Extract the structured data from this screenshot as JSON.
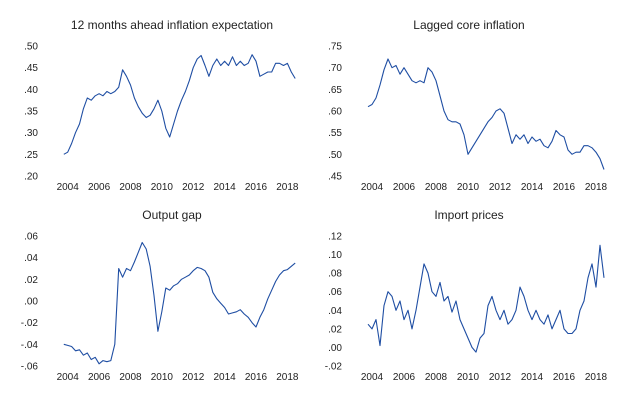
{
  "line_color": "#1f4ea3",
  "chart_data": [
    {
      "type": "line",
      "title": "12 months ahead inflation expectation",
      "xlabel": "",
      "ylabel": "",
      "x_ticks": [
        "2004",
        "2006",
        "2008",
        "2010",
        "2012",
        "2014",
        "2016",
        "2018"
      ],
      "y_ticks": [
        ".20",
        ".25",
        ".30",
        ".35",
        ".40",
        ".45",
        ".50"
      ],
      "xlim": [
        2003,
        2019.25
      ],
      "ylim": [
        0.2,
        0.5
      ],
      "grid": false,
      "legend": "none",
      "series": [
        {
          "x": [
            2003.75,
            2004.0,
            2004.25,
            2004.5,
            2004.75,
            2005.0,
            2005.25,
            2005.5,
            2005.75,
            2006.0,
            2006.25,
            2006.5,
            2006.75,
            2007.0,
            2007.25,
            2007.5,
            2007.75,
            2008.0,
            2008.25,
            2008.5,
            2008.75,
            2009.0,
            2009.25,
            2009.5,
            2009.75,
            2010.0,
            2010.25,
            2010.5,
            2010.75,
            2011.0,
            2011.25,
            2011.5,
            2011.75,
            2012.0,
            2012.25,
            2012.5,
            2012.75,
            2013.0,
            2013.25,
            2013.5,
            2013.75,
            2014.0,
            2014.25,
            2014.5,
            2014.75,
            2015.0,
            2015.25,
            2015.5,
            2015.75,
            2016.0,
            2016.25,
            2016.5,
            2016.75,
            2017.0,
            2017.25,
            2017.5,
            2017.75,
            2018.0,
            2018.25,
            2018.5
          ],
          "y": [
            0.25,
            0.255,
            0.275,
            0.3,
            0.32,
            0.355,
            0.38,
            0.375,
            0.385,
            0.39,
            0.385,
            0.395,
            0.39,
            0.395,
            0.405,
            0.445,
            0.43,
            0.41,
            0.38,
            0.36,
            0.345,
            0.335,
            0.34,
            0.355,
            0.375,
            0.35,
            0.31,
            0.29,
            0.32,
            0.35,
            0.375,
            0.395,
            0.42,
            0.45,
            0.47,
            0.478,
            0.455,
            0.43,
            0.455,
            0.47,
            0.455,
            0.465,
            0.455,
            0.475,
            0.455,
            0.465,
            0.455,
            0.46,
            0.48,
            0.465,
            0.43,
            0.435,
            0.44,
            0.44,
            0.46,
            0.46,
            0.455,
            0.46,
            0.44,
            0.425
          ]
        }
      ]
    },
    {
      "type": "line",
      "title": "Lagged core inflation",
      "xlabel": "",
      "ylabel": "",
      "x_ticks": [
        "2004",
        "2006",
        "2008",
        "2010",
        "2012",
        "2014",
        "2016",
        "2018"
      ],
      "y_ticks": [
        ".45",
        ".50",
        ".55",
        ".60",
        ".65",
        ".70",
        ".75"
      ],
      "xlim": [
        2003,
        2019.25
      ],
      "ylim": [
        0.45,
        0.75
      ],
      "grid": false,
      "legend": "none",
      "series": [
        {
          "x": [
            2003.75,
            2004.0,
            2004.25,
            2004.5,
            2004.75,
            2005.0,
            2005.25,
            2005.5,
            2005.75,
            2006.0,
            2006.25,
            2006.5,
            2006.75,
            2007.0,
            2007.25,
            2007.5,
            2007.75,
            2008.0,
            2008.25,
            2008.5,
            2008.75,
            2009.0,
            2009.25,
            2009.5,
            2009.75,
            2010.0,
            2010.25,
            2010.5,
            2010.75,
            2011.0,
            2011.25,
            2011.5,
            2011.75,
            2012.0,
            2012.25,
            2012.5,
            2012.75,
            2013.0,
            2013.25,
            2013.5,
            2013.75,
            2014.0,
            2014.25,
            2014.5,
            2014.75,
            2015.0,
            2015.25,
            2015.5,
            2015.75,
            2016.0,
            2016.25,
            2016.5,
            2016.75,
            2017.0,
            2017.25,
            2017.5,
            2017.75,
            2018.0,
            2018.25,
            2018.5
          ],
          "y": [
            0.61,
            0.615,
            0.63,
            0.66,
            0.695,
            0.72,
            0.7,
            0.705,
            0.685,
            0.7,
            0.685,
            0.67,
            0.665,
            0.67,
            0.665,
            0.7,
            0.69,
            0.67,
            0.635,
            0.6,
            0.58,
            0.575,
            0.575,
            0.57,
            0.545,
            0.5,
            0.515,
            0.53,
            0.545,
            0.56,
            0.575,
            0.585,
            0.6,
            0.605,
            0.595,
            0.56,
            0.525,
            0.545,
            0.535,
            0.545,
            0.525,
            0.54,
            0.53,
            0.535,
            0.52,
            0.515,
            0.53,
            0.555,
            0.545,
            0.54,
            0.51,
            0.5,
            0.505,
            0.505,
            0.52,
            0.52,
            0.515,
            0.505,
            0.49,
            0.465
          ]
        }
      ]
    },
    {
      "type": "line",
      "title": "Output gap",
      "xlabel": "",
      "ylabel": "",
      "x_ticks": [
        "2004",
        "2006",
        "2008",
        "2010",
        "2012",
        "2014",
        "2016",
        "2018"
      ],
      "y_ticks": [
        "-.06",
        "-.04",
        "-.02",
        ".00",
        ".02",
        ".04",
        ".06"
      ],
      "xlim": [
        2003,
        2019.25
      ],
      "ylim": [
        -0.06,
        0.06
      ],
      "grid": false,
      "legend": "none",
      "series": [
        {
          "x": [
            2003.75,
            2004.0,
            2004.25,
            2004.5,
            2004.75,
            2005.0,
            2005.25,
            2005.5,
            2005.75,
            2006.0,
            2006.25,
            2006.5,
            2006.75,
            2007.0,
            2007.25,
            2007.5,
            2007.75,
            2008.0,
            2008.25,
            2008.5,
            2008.75,
            2009.0,
            2009.25,
            2009.5,
            2009.75,
            2010.0,
            2010.25,
            2010.5,
            2010.75,
            2011.0,
            2011.25,
            2011.5,
            2011.75,
            2012.0,
            2012.25,
            2012.5,
            2012.75,
            2013.0,
            2013.25,
            2013.5,
            2013.75,
            2014.0,
            2014.25,
            2014.5,
            2014.75,
            2015.0,
            2015.25,
            2015.5,
            2015.75,
            2016.0,
            2016.25,
            2016.5,
            2016.75,
            2017.0,
            2017.25,
            2017.5,
            2017.75,
            2018.0,
            2018.25,
            2018.5
          ],
          "y": [
            -0.04,
            -0.041,
            -0.042,
            -0.046,
            -0.045,
            -0.05,
            -0.048,
            -0.054,
            -0.052,
            -0.058,
            -0.055,
            -0.056,
            -0.055,
            -0.04,
            0.03,
            0.022,
            0.03,
            0.028,
            0.036,
            0.045,
            0.054,
            0.048,
            0.032,
            0.005,
            -0.028,
            -0.01,
            0.012,
            0.01,
            0.014,
            0.016,
            0.02,
            0.022,
            0.024,
            0.028,
            0.031,
            0.03,
            0.028,
            0.022,
            0.008,
            0.002,
            -0.002,
            -0.006,
            -0.012,
            -0.011,
            -0.01,
            -0.008,
            -0.012,
            -0.015,
            -0.02,
            -0.024,
            -0.015,
            -0.008,
            0.002,
            0.01,
            0.018,
            0.024,
            0.028,
            0.029,
            0.032,
            0.035
          ]
        }
      ]
    },
    {
      "type": "line",
      "title": "Import prices",
      "xlabel": "",
      "ylabel": "",
      "x_ticks": [
        "2004",
        "2006",
        "2008",
        "2010",
        "2012",
        "2014",
        "2016",
        "2018"
      ],
      "y_ticks": [
        "-.02",
        ".00",
        ".02",
        ".04",
        ".06",
        ".08",
        ".10",
        ".12"
      ],
      "xlim": [
        2003,
        2019.25
      ],
      "ylim": [
        -0.02,
        0.12
      ],
      "grid": false,
      "legend": "none",
      "series": [
        {
          "x": [
            2003.75,
            2004.0,
            2004.25,
            2004.5,
            2004.75,
            2005.0,
            2005.25,
            2005.5,
            2005.75,
            2006.0,
            2006.25,
            2006.5,
            2006.75,
            2007.0,
            2007.25,
            2007.5,
            2007.75,
            2008.0,
            2008.25,
            2008.5,
            2008.75,
            2009.0,
            2009.25,
            2009.5,
            2009.75,
            2010.0,
            2010.25,
            2010.5,
            2010.75,
            2011.0,
            2011.25,
            2011.5,
            2011.75,
            2012.0,
            2012.25,
            2012.5,
            2012.75,
            2013.0,
            2013.25,
            2013.5,
            2013.75,
            2014.0,
            2014.25,
            2014.5,
            2014.75,
            2015.0,
            2015.25,
            2015.5,
            2015.75,
            2016.0,
            2016.25,
            2016.5,
            2016.75,
            2017.0,
            2017.25,
            2017.5,
            2017.75,
            2018.0,
            2018.25,
            2018.5
          ],
          "y": [
            0.025,
            0.02,
            0.03,
            0.002,
            0.045,
            0.06,
            0.055,
            0.04,
            0.05,
            0.03,
            0.04,
            0.02,
            0.04,
            0.065,
            0.09,
            0.08,
            0.06,
            0.055,
            0.07,
            0.05,
            0.055,
            0.038,
            0.05,
            0.03,
            0.02,
            0.01,
            0.0,
            -0.005,
            0.01,
            0.015,
            0.045,
            0.055,
            0.04,
            0.03,
            0.04,
            0.025,
            0.03,
            0.04,
            0.065,
            0.055,
            0.04,
            0.03,
            0.04,
            0.03,
            0.025,
            0.035,
            0.02,
            0.03,
            0.04,
            0.02,
            0.015,
            0.015,
            0.02,
            0.04,
            0.05,
            0.075,
            0.09,
            0.065,
            0.11,
            0.075
          ]
        }
      ]
    }
  ]
}
